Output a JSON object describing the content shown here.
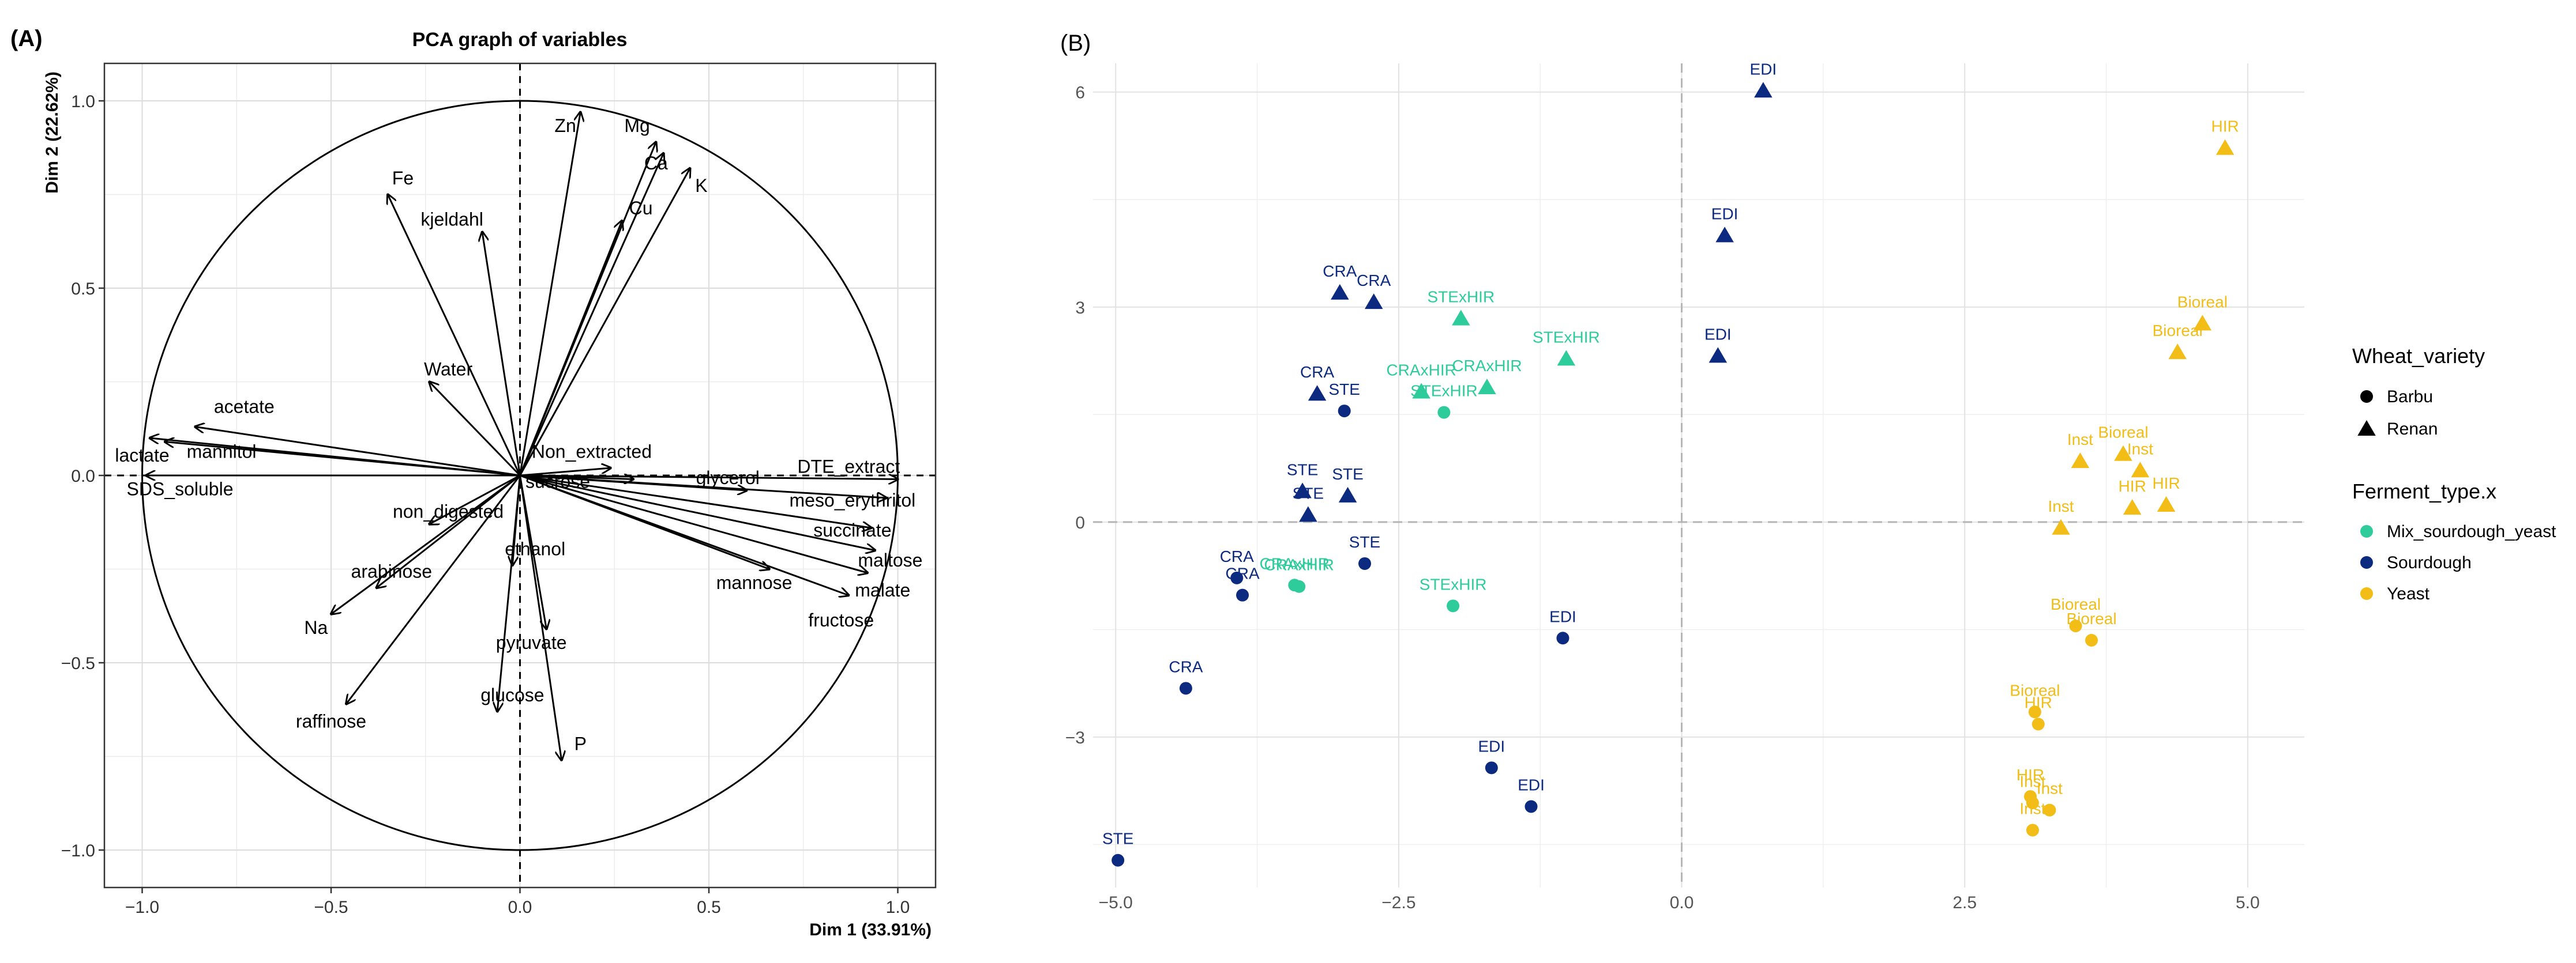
{
  "panel_a": {
    "label": "(A)",
    "chart_data": {
      "type": "pca_variables",
      "title": "PCA graph of variables",
      "xlabel": "Dim 1 (33.91%)",
      "ylabel": "Dim 2 (22.62%)",
      "xlim": [
        -1.1,
        1.1
      ],
      "ylim": [
        -1.1,
        1.1
      ],
      "xticks": [
        -1.0,
        -0.5,
        0.0,
        0.5,
        1.0
      ],
      "yticks": [
        -1.0,
        -0.5,
        0.0,
        0.5,
        1.0
      ],
      "xtick_labels": [
        "−1.0",
        "−0.5",
        "0.0",
        "0.5",
        "1.0"
      ],
      "ytick_labels": [
        "−1.0",
        "−0.5",
        "0.0",
        "0.5",
        "1.0"
      ],
      "variables": [
        {
          "name": "Fe",
          "x": -0.35,
          "y": 0.75,
          "lx": -0.31,
          "ly": 0.79
        },
        {
          "name": "Zn",
          "x": 0.16,
          "y": 0.97,
          "lx": 0.12,
          "ly": 0.93
        },
        {
          "name": "Mg",
          "x": 0.36,
          "y": 0.89,
          "lx": 0.31,
          "ly": 0.93
        },
        {
          "name": "Ca",
          "x": 0.38,
          "y": 0.86,
          "lx": 0.36,
          "ly": 0.83
        },
        {
          "name": "Cu",
          "x": 0.27,
          "y": 0.68,
          "lx": 0.32,
          "ly": 0.71
        },
        {
          "name": "K",
          "x": 0.45,
          "y": 0.82,
          "lx": 0.48,
          "ly": 0.77
        },
        {
          "name": "kjeldahl",
          "x": -0.1,
          "y": 0.65,
          "lx": -0.18,
          "ly": 0.68
        },
        {
          "name": "Water",
          "x": -0.24,
          "y": 0.25,
          "lx": -0.19,
          "ly": 0.28
        },
        {
          "name": "acetate",
          "x": -0.86,
          "y": 0.13,
          "lx": -0.73,
          "ly": 0.18
        },
        {
          "name": "mannitol",
          "x": -0.94,
          "y": 0.09,
          "lx": -0.79,
          "ly": 0.06
        },
        {
          "name": "lactate",
          "x": -0.98,
          "y": 0.1,
          "lx": -1.0,
          "ly": 0.05
        },
        {
          "name": "SDS_soluble",
          "x": -0.99,
          "y": 0.0,
          "lx": -0.9,
          "ly": -0.04
        },
        {
          "name": "Non_extracted",
          "x": 0.24,
          "y": 0.02,
          "lx": 0.19,
          "ly": 0.06
        },
        {
          "name": "sucrose",
          "x": 0.3,
          "y": -0.01,
          "lx": 0.1,
          "ly": -0.02
        },
        {
          "name": "glycerol",
          "x": 0.6,
          "y": -0.04,
          "lx": 0.55,
          "ly": -0.01
        },
        {
          "name": "DTE_extract",
          "x": 1.0,
          "y": -0.01,
          "lx": 0.87,
          "ly": 0.02
        },
        {
          "name": "meso_erythritol",
          "x": 0.97,
          "y": -0.06,
          "lx": 0.88,
          "ly": -0.07
        },
        {
          "name": "succinate",
          "x": 0.93,
          "y": -0.14,
          "lx": 0.88,
          "ly": -0.15
        },
        {
          "name": "maltose",
          "x": 0.94,
          "y": -0.2,
          "lx": 0.98,
          "ly": -0.23
        },
        {
          "name": "malate",
          "x": 0.92,
          "y": -0.26,
          "lx": 0.96,
          "ly": -0.31
        },
        {
          "name": "mannose",
          "x": 0.66,
          "y": -0.25,
          "lx": 0.62,
          "ly": -0.29
        },
        {
          "name": "fructose",
          "x": 0.87,
          "y": -0.32,
          "lx": 0.85,
          "ly": -0.39
        },
        {
          "name": "non_digested",
          "x": -0.24,
          "y": -0.13,
          "lx": -0.19,
          "ly": -0.1
        },
        {
          "name": "ethanol",
          "x": -0.02,
          "y": -0.24,
          "lx": 0.04,
          "ly": -0.2
        },
        {
          "name": "arabinose",
          "x": -0.38,
          "y": -0.3,
          "lx": -0.34,
          "ly": -0.26
        },
        {
          "name": "Na",
          "x": -0.5,
          "y": -0.37,
          "lx": -0.54,
          "ly": -0.41
        },
        {
          "name": "raffinose",
          "x": -0.46,
          "y": -0.61,
          "lx": -0.5,
          "ly": -0.66
        },
        {
          "name": "pyruvate",
          "x": 0.07,
          "y": -0.41,
          "lx": 0.03,
          "ly": -0.45
        },
        {
          "name": "glucose",
          "x": -0.06,
          "y": -0.63,
          "lx": -0.02,
          "ly": -0.59
        },
        {
          "name": "P",
          "x": 0.11,
          "y": -0.76,
          "lx": 0.16,
          "ly": -0.72
        }
      ]
    }
  },
  "panel_b": {
    "label": "(B)",
    "chart_data": {
      "type": "scatter",
      "xlim": [
        -5.2,
        5.5
      ],
      "ylim": [
        -5.1,
        6.4
      ],
      "xticks": [
        -5.0,
        -2.5,
        0.0,
        2.5,
        5.0
      ],
      "yticks": [
        -3,
        0,
        3,
        6
      ],
      "xtick_labels": [
        "−5.0",
        "−2.5",
        "0.0",
        "2.5",
        "5.0"
      ],
      "ytick_labels": [
        "−3",
        "0",
        "3",
        "6"
      ],
      "colors": {
        "Mix_sourdough_yeast": "#2ecc9a",
        "Sourdough": "#0b2a80",
        "Yeast": "#f2bd17"
      },
      "legend_wheat": {
        "title": "Wheat_variety",
        "items": [
          {
            "label": "Barbu",
            "shape": "circle"
          },
          {
            "label": "Renan",
            "shape": "triangle"
          }
        ]
      },
      "legend_ferment": {
        "title": "Ferment_type.x",
        "items": [
          {
            "label": "Mix_sourdough_yeast",
            "key": "Mix_sourdough_yeast"
          },
          {
            "label": "Sourdough",
            "key": "Sourdough"
          },
          {
            "label": "Yeast",
            "key": "Yeast"
          }
        ]
      },
      "points": [
        {
          "label": "EDI",
          "x": 0.72,
          "y": 6.02,
          "shape": "triangle",
          "group": "Sourdough"
        },
        {
          "label": "EDI",
          "x": 0.38,
          "y": 4.0,
          "shape": "triangle",
          "group": "Sourdough"
        },
        {
          "label": "EDI",
          "x": 0.32,
          "y": 2.32,
          "shape": "triangle",
          "group": "Sourdough"
        },
        {
          "label": "CRA",
          "x": -3.02,
          "y": 3.2,
          "shape": "triangle",
          "group": "Sourdough"
        },
        {
          "label": "CRA",
          "x": -2.72,
          "y": 3.07,
          "shape": "triangle",
          "group": "Sourdough"
        },
        {
          "label": "CRA",
          "x": -3.22,
          "y": 1.79,
          "shape": "triangle",
          "group": "Sourdough"
        },
        {
          "label": "STE",
          "x": -2.98,
          "y": 1.55,
          "shape": "circle",
          "group": "Sourdough"
        },
        {
          "label": "STE",
          "x": -3.35,
          "y": 0.43,
          "shape": "triangle",
          "group": "Sourdough"
        },
        {
          "label": "STE",
          "x": -2.95,
          "y": 0.37,
          "shape": "triangle",
          "group": "Sourdough"
        },
        {
          "label": "STE",
          "x": -3.3,
          "y": 0.1,
          "shape": "triangle",
          "group": "Sourdough"
        },
        {
          "label": "STE",
          "x": -2.8,
          "y": -0.58,
          "shape": "circle",
          "group": "Sourdough"
        },
        {
          "label": "CRA",
          "x": -3.93,
          "y": -0.78,
          "shape": "circle",
          "group": "Sourdough"
        },
        {
          "label": "CRA",
          "x": -3.88,
          "y": -1.02,
          "shape": "circle",
          "group": "Sourdough"
        },
        {
          "label": "CRA",
          "x": -4.38,
          "y": -2.32,
          "shape": "circle",
          "group": "Sourdough"
        },
        {
          "label": "STE",
          "x": -4.98,
          "y": -4.72,
          "shape": "circle",
          "group": "Sourdough"
        },
        {
          "label": "EDI",
          "x": -1.05,
          "y": -1.62,
          "shape": "circle",
          "group": "Sourdough"
        },
        {
          "label": "EDI",
          "x": -1.68,
          "y": -3.43,
          "shape": "circle",
          "group": "Sourdough"
        },
        {
          "label": "EDI",
          "x": -1.33,
          "y": -3.97,
          "shape": "circle",
          "group": "Sourdough"
        },
        {
          "label": "STExHIR",
          "x": -1.95,
          "y": 2.84,
          "shape": "triangle",
          "group": "Mix_sourdough_yeast"
        },
        {
          "label": "STExHIR",
          "x": -1.02,
          "y": 2.28,
          "shape": "triangle",
          "group": "Mix_sourdough_yeast"
        },
        {
          "label": "CRAxHIR",
          "x": -2.3,
          "y": 1.82,
          "shape": "triangle",
          "group": "Mix_sourdough_yeast"
        },
        {
          "label": "CRAxHIR",
          "x": -1.72,
          "y": 1.88,
          "shape": "triangle",
          "group": "Mix_sourdough_yeast"
        },
        {
          "label": "STExHIR",
          "x": -2.1,
          "y": 1.53,
          "shape": "circle",
          "group": "Mix_sourdough_yeast"
        },
        {
          "label": "CRAxHIR",
          "x": -3.42,
          "y": -0.88,
          "shape": "circle",
          "group": "Mix_sourdough_yeast"
        },
        {
          "label": "CRAxHIR",
          "x": -3.38,
          "y": -0.9,
          "shape": "circle",
          "group": "Mix_sourdough_yeast"
        },
        {
          "label": "STExHIR",
          "x": -2.02,
          "y": -1.17,
          "shape": "circle",
          "group": "Mix_sourdough_yeast"
        },
        {
          "label": "HIR",
          "x": 4.8,
          "y": 5.22,
          "shape": "triangle",
          "group": "Yeast"
        },
        {
          "label": "Bioreal",
          "x": 4.6,
          "y": 2.77,
          "shape": "triangle",
          "group": "Yeast"
        },
        {
          "label": "Bioreal",
          "x": 4.38,
          "y": 2.37,
          "shape": "triangle",
          "group": "Yeast"
        },
        {
          "label": "Inst",
          "x": 3.52,
          "y": 0.85,
          "shape": "triangle",
          "group": "Yeast"
        },
        {
          "label": "Bioreal",
          "x": 3.9,
          "y": 0.95,
          "shape": "triangle",
          "group": "Yeast"
        },
        {
          "label": "Inst",
          "x": 4.05,
          "y": 0.72,
          "shape": "triangle",
          "group": "Yeast"
        },
        {
          "label": "HIR",
          "x": 3.98,
          "y": 0.2,
          "shape": "triangle",
          "group": "Yeast"
        },
        {
          "label": "HIR",
          "x": 4.28,
          "y": 0.24,
          "shape": "triangle",
          "group": "Yeast"
        },
        {
          "label": "Inst",
          "x": 3.35,
          "y": -0.08,
          "shape": "triangle",
          "group": "Yeast"
        },
        {
          "label": "Bioreal",
          "x": 3.48,
          "y": -1.45,
          "shape": "circle",
          "group": "Yeast"
        },
        {
          "label": "Bioreal",
          "x": 3.62,
          "y": -1.65,
          "shape": "circle",
          "group": "Yeast"
        },
        {
          "label": "Bioreal",
          "x": 3.12,
          "y": -2.65,
          "shape": "circle",
          "group": "Yeast"
        },
        {
          "label": "HIR",
          "x": 3.15,
          "y": -2.82,
          "shape": "circle",
          "group": "Yeast"
        },
        {
          "label": "HIR",
          "x": 3.08,
          "y": -3.83,
          "shape": "circle",
          "group": "Yeast"
        },
        {
          "label": "Inst",
          "x": 3.1,
          "y": -3.92,
          "shape": "circle",
          "group": "Yeast"
        },
        {
          "label": "Inst",
          "x": 3.25,
          "y": -4.02,
          "shape": "circle",
          "group": "Yeast"
        },
        {
          "label": "Inst",
          "x": 3.1,
          "y": -4.3,
          "shape": "circle",
          "group": "Yeast"
        }
      ]
    }
  }
}
